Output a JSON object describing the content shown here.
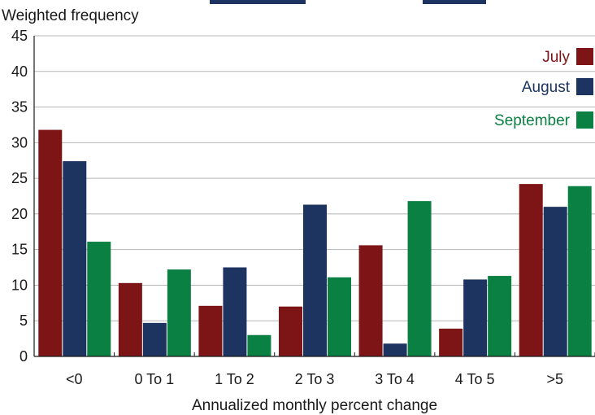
{
  "chart_data": {
    "type": "bar",
    "title": "",
    "ylabel": "Weighted frequency",
    "xlabel": "Annualized monthly percent change",
    "categories": [
      "<0",
      "0 To 1",
      "1 To 2",
      "2 To 3",
      "3 To 4",
      "4 To 5",
      ">5"
    ],
    "series": [
      {
        "name": "July",
        "color": "#7d1416",
        "values": [
          31.8,
          10.3,
          7.1,
          7.0,
          15.6,
          3.9,
          24.2
        ]
      },
      {
        "name": "August",
        "color": "#1d3461",
        "values": [
          27.4,
          4.7,
          12.5,
          21.3,
          1.8,
          10.8,
          21.0
        ]
      },
      {
        "name": "September",
        "color": "#0b8043",
        "values": [
          16.1,
          12.2,
          3.0,
          11.1,
          21.8,
          11.3,
          23.9
        ]
      }
    ],
    "ylim": [
      0,
      45
    ],
    "yticks": [
      0,
      5,
      10,
      15,
      20,
      25,
      30,
      35,
      40,
      45
    ],
    "grid": true,
    "legend": "top-right"
  }
}
